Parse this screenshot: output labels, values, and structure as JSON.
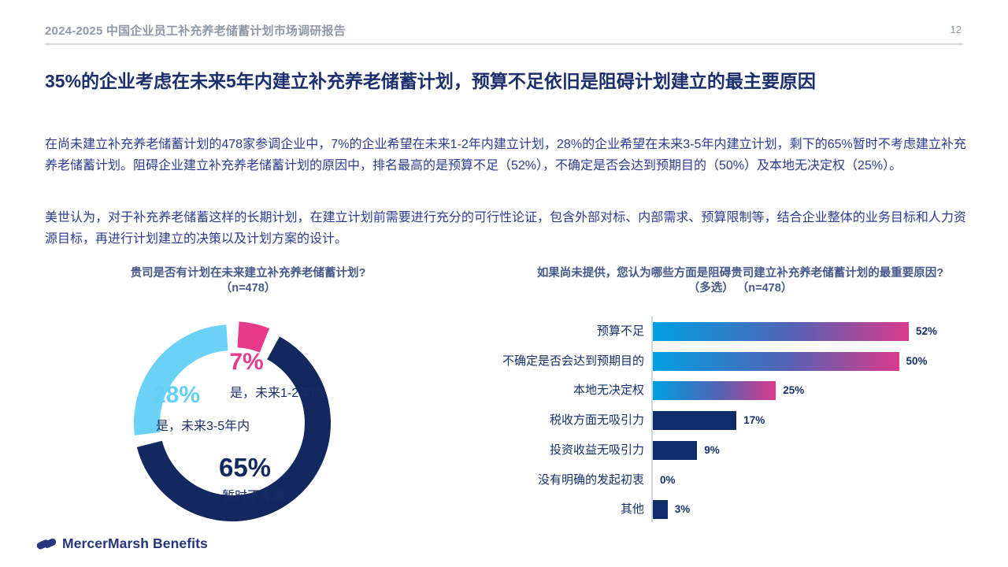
{
  "header": {
    "report_title": "2024-2025 中国企业员工补充养老储蓄计划市场调研报告",
    "page_number": "12"
  },
  "headline": "35%的企业考虑在未来5年内建立补充养老储蓄计划，预算不足依旧是阻碍计划建立的最主要原因",
  "paragraphs": {
    "p1": "在尚未建立补充养老储蓄计划的478家参调企业中，7%的企业希望在未来1-2年内建立计划，28%的企业希望在未来3-5年内建立计划，剩下的65%暂时不考虑建立补充养老储蓄计划。阻碍企业建立补充养老储蓄计划的原因中，排名最高的是预算不足（52%），不确定是否会达到预期目的（50%）及本地无决定权（25%）。",
    "p2": "美世认为，对于补充养老储蓄这样的长期计划，在建立计划前需要进行充分的可行性论证，包含外部对标、内部需求、预算限制等，结合企业整体的业务目标和人力资源目标，再进行计划建立的决策以及计划方案的设计。"
  },
  "footer": {
    "logo_text": "MercerMarsh Benefits",
    "logo_color": "#26357c"
  },
  "chart_data": [
    {
      "type": "pie",
      "donut": true,
      "title": "贵司是否有计划在未来建立补充养老储蓄计划?",
      "subtitle": "（n=478）",
      "segments": [
        {
          "label": "是，未来1-2年内",
          "pct_label": "7%",
          "value": 7,
          "color": "#e63a8c"
        },
        {
          "label": "暂时不考虑",
          "pct_label": "65%",
          "value": 65,
          "color": "#13285f"
        },
        {
          "label": "是，未来3-5年内",
          "pct_label": "28%",
          "value": 28,
          "color": "#6bd2f6"
        }
      ]
    },
    {
      "type": "bar",
      "orientation": "horizontal",
      "title": "如果尚未提供，您认为哪些方面是阻碍贵司建立补充养老储蓄计划的最重要原因?",
      "subtitle": "（多选） （n=478）",
      "categories": [
        "预算不足",
        "不确定是否会达到预期目的",
        "本地无决定权",
        "税收方面无吸引力",
        "投资收益无吸引力",
        "没有明确的发起初衷",
        "其他"
      ],
      "values": [
        52,
        50,
        25,
        17,
        9,
        0,
        3
      ],
      "value_labels": [
        "52%",
        "50%",
        "25%",
        "17%",
        "9%",
        "0%",
        "3%"
      ],
      "bar_styles": [
        "gradient",
        "gradient",
        "gradient",
        "solid",
        "solid",
        "solid",
        "solid"
      ],
      "colors": {
        "gradient_start": "#009fe1",
        "gradient_mid": "#5562b4",
        "gradient_end": "#d93a8c",
        "solid": "#0d2c68"
      },
      "xlim": [
        0,
        56
      ],
      "grid": false,
      "legend": "none"
    }
  ]
}
